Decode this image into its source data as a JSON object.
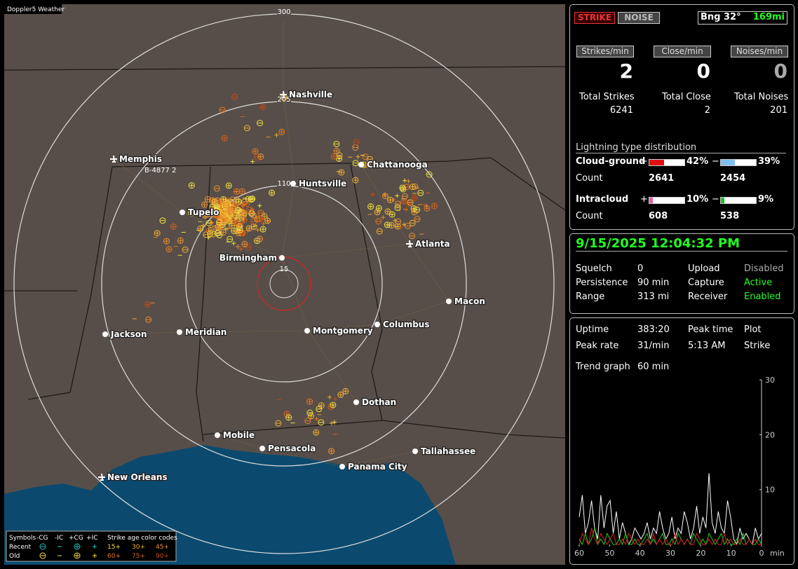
{
  "map": {
    "title": "Doppler5 Weather",
    "ring_labels": [
      300,
      205,
      110,
      15
    ],
    "site_label": "B-4877 2",
    "cities": [
      "Nashville",
      "Memphis",
      "Chattanooga",
      "Huntsville",
      "Tupelo",
      "Birmingham",
      "Atlanta",
      "Macon",
      "Jackson",
      "Meridian",
      "Montgomery",
      "Columbus",
      "Dothan",
      "Mobile",
      "Pensacola",
      "Panama City",
      "Tallahassee",
      "New Orleans"
    ],
    "legend": {
      "symbols_label": "Symbols",
      "symbol_headers": [
        "-CG",
        "-IC",
        "+CG",
        "+IC"
      ],
      "age_label": "Strike age color codes",
      "rows": [
        {
          "label": "Recent",
          "ages": [
            "15+",
            "30+",
            "45+"
          ]
        },
        {
          "label": "Old",
          "ages": [
            "60+",
            "75+",
            "90+"
          ]
        }
      ]
    }
  },
  "status": {
    "strike_button": "STRIKE",
    "noise_button": "NOISE",
    "bearing": "Bng 32°",
    "distance": "169mi",
    "rates": [
      {
        "label": "Strikes/min",
        "value": 2
      },
      {
        "label": "Close/min",
        "value": 0
      },
      {
        "label": "Noises/min",
        "value": 0
      }
    ],
    "totals": [
      {
        "label": "Total Strikes",
        "value": 6241
      },
      {
        "label": "Total Close",
        "value": 2
      },
      {
        "label": "Total Noises",
        "value": 201
      }
    ],
    "distribution": {
      "title": "Lightning type distribution",
      "count_label": "Count",
      "types": [
        {
          "name": "Cloud-ground",
          "pos_sign": "+",
          "pos_pct": {
            "value": 42,
            "label": "42%"
          },
          "pos_count": 2641,
          "neg_sign": "−",
          "neg_pct": {
            "value": 39,
            "label": "39%"
          },
          "neg_count": 2454
        },
        {
          "name": "Intracloud",
          "pos_sign": "+",
          "pos_pct": {
            "value": 10,
            "label": "10%"
          },
          "pos_count": 608,
          "neg_sign": "−",
          "neg_pct": {
            "value": 9,
            "label": "9%"
          },
          "neg_count": 538
        }
      ]
    }
  },
  "settings": {
    "datetime": "9/15/2025 12:04:32 PM",
    "rows": [
      [
        "Squelch",
        "0",
        "Upload",
        "Disabled"
      ],
      [
        "Persistence",
        "90 min",
        "Capture",
        "Active"
      ],
      [
        "Range",
        "313 mi",
        "Receiver",
        "Enabled"
      ]
    ]
  },
  "stats": {
    "uptime_label": "Uptime",
    "uptime": "383:20",
    "peak_rate_label": "Peak rate",
    "peak_rate": "31/min",
    "peak_time_label": "Peak time",
    "peak_time": "5:13 AM",
    "plot_label": "Plot",
    "plot": "Strike",
    "trend_label": "Trend graph",
    "trend_window": "60 min"
  },
  "trend": {
    "ylim": [
      0,
      30
    ],
    "yticks": [
      10,
      20,
      30
    ],
    "xlim": [
      60,
      0
    ],
    "xticks": [
      60,
      50,
      40,
      30,
      20,
      10,
      0
    ],
    "x_unit": "min",
    "series": [
      {
        "color": "#ffffff",
        "values": [
          5,
          9,
          2,
          4,
          8,
          3,
          1,
          9,
          3,
          7,
          8,
          2,
          6,
          1,
          4,
          2,
          0,
          1,
          3,
          2,
          1,
          2,
          4,
          1,
          3,
          2,
          6,
          3,
          1,
          2,
          5,
          1,
          3,
          2,
          6,
          4,
          1,
          3,
          7,
          2,
          5,
          3,
          13,
          4,
          2,
          6,
          3,
          2,
          8,
          5,
          1,
          0,
          3,
          1,
          2,
          1,
          0,
          3,
          1,
          2
        ]
      },
      {
        "color": "#22cc22",
        "values": [
          1,
          0,
          2,
          0,
          1,
          3,
          0,
          1,
          0,
          2,
          1,
          0,
          0,
          1,
          0,
          2,
          0,
          0,
          1,
          0,
          0,
          1,
          2,
          0,
          1,
          0,
          1,
          2,
          0,
          0,
          1,
          0,
          2,
          1,
          0,
          1,
          0,
          2,
          1,
          0,
          1,
          0,
          2,
          1,
          0,
          1,
          2,
          0,
          1,
          0,
          0,
          1,
          0,
          2,
          0,
          1,
          0,
          0,
          1,
          0
        ]
      },
      {
        "color": "#dd2222",
        "values": [
          0,
          2,
          1,
          0,
          3,
          1,
          0,
          2,
          1,
          0,
          1,
          2,
          0,
          0,
          1,
          0,
          2,
          1,
          0,
          1,
          0,
          0,
          1,
          0,
          2,
          0,
          1,
          0,
          1,
          0,
          0,
          2,
          0,
          1,
          0,
          1,
          0,
          0,
          2,
          1,
          0,
          0,
          1,
          0,
          1,
          0,
          0,
          2,
          0,
          1,
          0,
          0,
          1,
          0,
          0,
          1,
          0,
          1,
          0,
          0
        ]
      }
    ]
  }
}
